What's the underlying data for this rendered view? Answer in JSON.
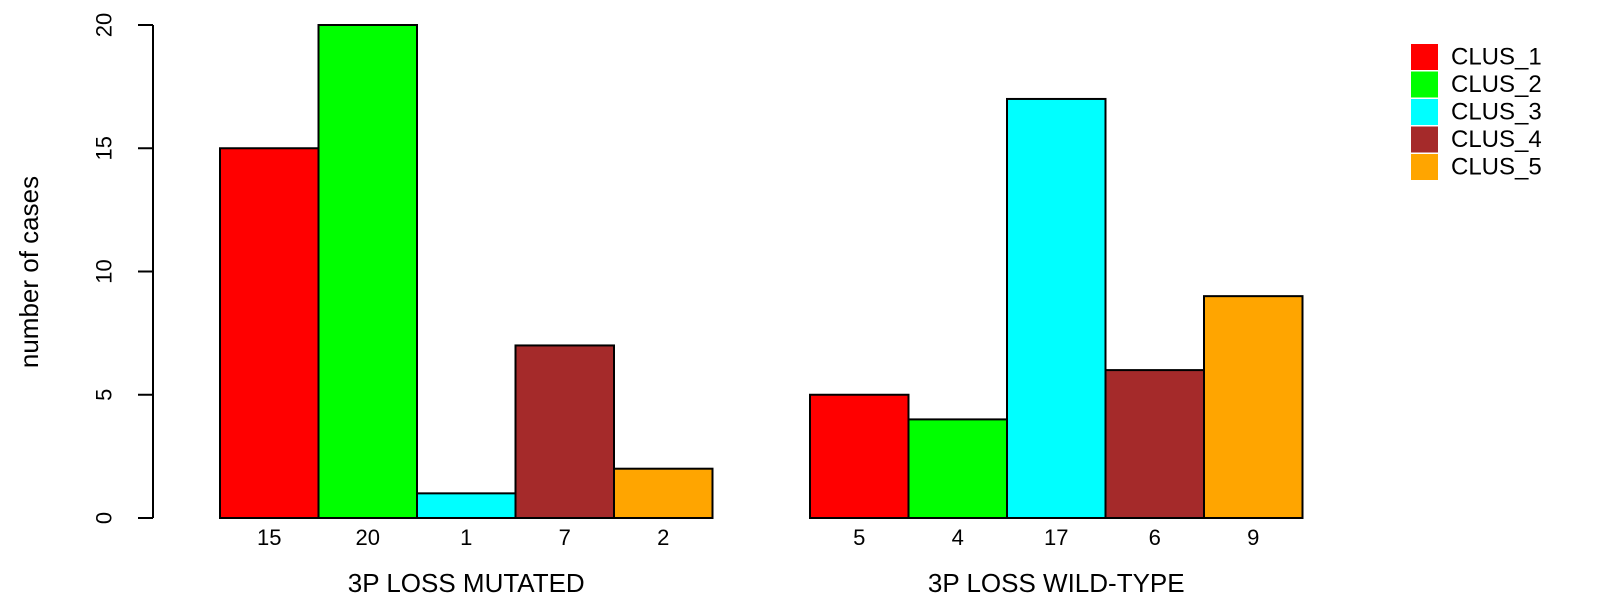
{
  "chart_data": {
    "type": "bar",
    "ylabel": "number of cases",
    "ylim": [
      0,
      20
    ],
    "yticks": [
      0,
      5,
      10,
      15,
      20
    ],
    "groups": [
      "3P LOSS MUTATED",
      "3P LOSS WILD-TYPE"
    ],
    "series": [
      {
        "name": "CLUS_1",
        "color": "#ff0000",
        "values": [
          15,
          5
        ]
      },
      {
        "name": "CLUS_2",
        "color": "#00ff00",
        "values": [
          20,
          4
        ]
      },
      {
        "name": "CLUS_3",
        "color": "#00ffff",
        "values": [
          1,
          17
        ]
      },
      {
        "name": "CLUS_4",
        "color": "#a52a2a",
        "values": [
          7,
          6
        ]
      },
      {
        "name": "CLUS_5",
        "color": "#ffa500",
        "values": [
          2,
          9
        ]
      }
    ],
    "bar_value_labels": true,
    "grid": false,
    "legend_position": "top-right"
  }
}
